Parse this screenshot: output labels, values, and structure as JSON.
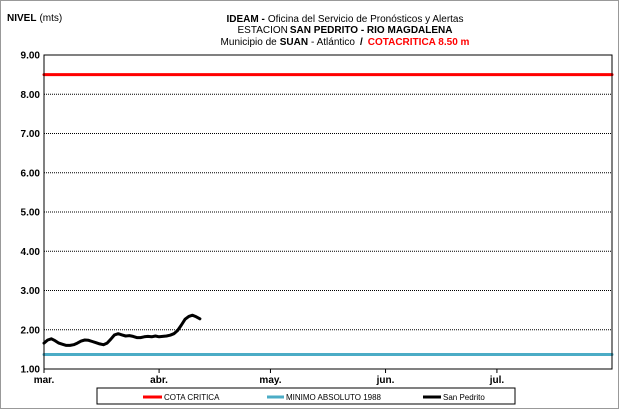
{
  "chart_data": {
    "type": "line",
    "ylabel_bold": "NIVEL",
    "ylabel_unit": "(mts)",
    "title": {
      "line1_bold": "IDEAM -",
      "line1_rest": "Oficina del Servicio de Pronósticos y Alertas",
      "line2_prefix": "ESTACION",
      "line2_bold": "SAN PEDRITO - RIO MAGDALENA",
      "line3_prefix": "Municipio de",
      "line3_bold": "SUAN",
      "line3_rest": "- Atlántico",
      "line3_sep": "/",
      "line3_red": "COTACRITICA 8.50  m"
    },
    "y_ticks": [
      "9.00",
      "8.00",
      "7.00",
      "6.00",
      "5.00",
      "4.00",
      "3.00",
      "2.00",
      "1.00"
    ],
    "ylim": [
      1.0,
      9.0
    ],
    "x_ticks": [
      "mar.",
      "abr.",
      "may.",
      "jun.",
      "jul."
    ],
    "x_range_days": [
      0,
      153
    ],
    "x_tick_days": [
      0,
      31,
      61,
      92,
      122
    ],
    "grid": "horizontal",
    "legend_position": "bottom",
    "colors": {
      "cota_critica": "#ff0000",
      "minimo": "#4bacc6",
      "san_pedrito": "#000000",
      "title_red": "#ff0000"
    },
    "series": [
      {
        "name": "COTA CRITICA",
        "key": "cota_critica",
        "x": [
          0,
          153
        ],
        "y": [
          8.5,
          8.5
        ]
      },
      {
        "name": "MINIMO ABSOLUTO 1988",
        "key": "minimo",
        "x": [
          0,
          153
        ],
        "y": [
          1.37,
          1.37
        ]
      },
      {
        "name": "San Pedrito",
        "key": "san_pedrito",
        "x": [
          0,
          1,
          2,
          3,
          4,
          5,
          6,
          7,
          8,
          9,
          10,
          11,
          12,
          13,
          14,
          15,
          16,
          17,
          18,
          19,
          20,
          21,
          22,
          23,
          24,
          25,
          26,
          27,
          28,
          29,
          30,
          31,
          32,
          33,
          34,
          35,
          36,
          37,
          38,
          39,
          40,
          41,
          42
        ],
        "y": [
          1.66,
          1.74,
          1.77,
          1.72,
          1.66,
          1.63,
          1.6,
          1.6,
          1.62,
          1.66,
          1.71,
          1.74,
          1.73,
          1.7,
          1.67,
          1.64,
          1.62,
          1.66,
          1.76,
          1.87,
          1.9,
          1.87,
          1.84,
          1.85,
          1.83,
          1.8,
          1.8,
          1.82,
          1.83,
          1.82,
          1.84,
          1.82,
          1.83,
          1.84,
          1.86,
          1.9,
          1.98,
          2.12,
          2.27,
          2.34,
          2.37,
          2.33,
          2.28
        ]
      }
    ]
  }
}
